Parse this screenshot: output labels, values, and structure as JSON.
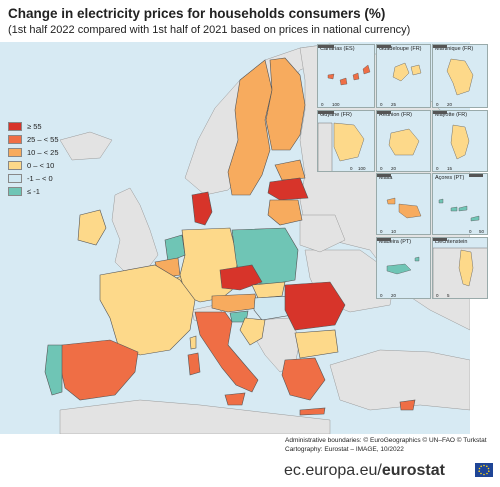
{
  "title": "Change in electricity prices for households consumers (%)",
  "subtitle": "(1st half 2022 compared with 1st half of 2021 based on prices in national currency)",
  "legend": [
    {
      "label": "≥ 55",
      "color": "#d7342a"
    },
    {
      "label": "25 – < 55",
      "color": "#ef6e45"
    },
    {
      "label": "10 – < 25",
      "color": "#f7ab5e"
    },
    {
      "label": "0 – < 10",
      "color": "#fdd98a"
    },
    {
      "label": "-1 – < 0",
      "color": "#d0e8f2"
    },
    {
      "label": "≤ -1",
      "color": "#6fc5b5"
    }
  ],
  "insets": {
    "canarias": {
      "title": "Canarias (ES)",
      "scale_start": "0",
      "scale_end": "100"
    },
    "guadeloupe": {
      "title": "Guadeloupe (FR)",
      "scale_start": "0",
      "scale_end": "25"
    },
    "martinique": {
      "title": "Martinique (FR)",
      "scale_start": "0",
      "scale_end": "20"
    },
    "guyane": {
      "title": "Guyane (FR)",
      "scale_start": "0",
      "scale_end": "100"
    },
    "reunion": {
      "title": "Réunion (FR)",
      "scale_start": "0",
      "scale_end": "20"
    },
    "mayotte": {
      "title": "Mayotte (FR)",
      "scale_start": "0",
      "scale_end": "15"
    },
    "malta": {
      "title": "Malta",
      "scale_start": "0",
      "scale_end": "10"
    },
    "azores": {
      "title": "Açores (PT)",
      "scale_start": "0",
      "scale_end": "50"
    },
    "madeira": {
      "title": "Madeira (PT)",
      "scale_start": "0",
      "scale_end": "20"
    },
    "liechtenstein": {
      "title": "Liechtenstein",
      "scale_start": "0",
      "scale_end": "5"
    }
  },
  "credits": {
    "line1": "Administrative boundaries: © EuroGeographics © UN–FAO © Turkstat",
    "line2": "Cartography: Eurostat – IMAGE, 10/2022"
  },
  "footer": {
    "url_prefix": "ec.europa.eu/",
    "url_brand": "eurostat"
  },
  "colors": {
    "sea": "#d7eaf3",
    "non_eu": "#e3e3e3",
    "border": "#555555"
  }
}
